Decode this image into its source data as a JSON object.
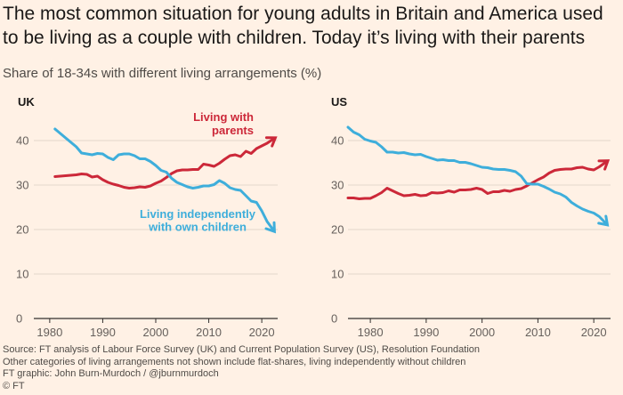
{
  "header": {
    "title": "The most common situation for young adults in Britain and America used to be living as a couple with children. Today it’s living with their parents",
    "subtitle": "Share of 18-34s with different living arrangements (%)"
  },
  "colors": {
    "background": "#fff1e5",
    "parents": "#cc2839",
    "independent": "#3eaedb",
    "grid": "#e3d6ca",
    "axis": "#33302e",
    "text": "#33302e"
  },
  "chart_data": [
    {
      "type": "line",
      "panel_label": "UK",
      "xlim": [
        1977,
        2023
      ],
      "ylim": [
        0,
        45
      ],
      "yticks": [
        0,
        10,
        20,
        30,
        40
      ],
      "ytick_labels": [
        "0",
        "10",
        "20",
        "30",
        "40"
      ],
      "xticks": [
        1980,
        1990,
        2000,
        2010,
        2020
      ],
      "xtick_labels": [
        "1980",
        "1990",
        "2000",
        "2010",
        "2020"
      ],
      "grid": true,
      "series": [
        {
          "name": "Living with parents",
          "label_lines": [
            "Living with",
            "parents"
          ],
          "color": "#cc2839",
          "x": [
            1981,
            1983,
            1985,
            1986,
            1987,
            1988,
            1989,
            1990,
            1991,
            1992,
            1993,
            1994,
            1995,
            1996,
            1997,
            1998,
            1999,
            2000,
            2001,
            2002,
            2003,
            2004,
            2005,
            2006,
            2007,
            2008,
            2009,
            2010,
            2011,
            2012,
            2013,
            2014,
            2015,
            2016,
            2017,
            2018,
            2019,
            2020,
            2021,
            2022
          ],
          "y": [
            31.9,
            32.1,
            32.3,
            32.5,
            32.4,
            31.8,
            32.0,
            31.2,
            30.6,
            30.2,
            29.9,
            29.5,
            29.3,
            29.4,
            29.6,
            29.5,
            29.8,
            30.4,
            30.9,
            31.7,
            32.6,
            33.2,
            33.4,
            33.4,
            33.5,
            33.5,
            34.7,
            34.5,
            34.2,
            34.9,
            35.8,
            36.6,
            36.8,
            36.4,
            37.6,
            37.1,
            38.2,
            38.8,
            39.4,
            40.2
          ]
        },
        {
          "name": "Living independently with own children",
          "label_lines": [
            "Living independently",
            "with own children"
          ],
          "color": "#3eaedb",
          "x": [
            1981,
            1983,
            1985,
            1986,
            1987,
            1988,
            1989,
            1990,
            1991,
            1992,
            1993,
            1994,
            1995,
            1996,
            1997,
            1998,
            1999,
            2000,
            2001,
            2002,
            2003,
            2004,
            2005,
            2006,
            2007,
            2008,
            2009,
            2010,
            2011,
            2012,
            2013,
            2014,
            2015,
            2016,
            2017,
            2018,
            2019,
            2020,
            2021,
            2022
          ],
          "y": [
            42.6,
            40.6,
            38.6,
            37.2,
            37.0,
            36.8,
            37.1,
            37.0,
            36.2,
            35.7,
            36.8,
            37.0,
            37.0,
            36.6,
            35.9,
            35.9,
            35.3,
            34.4,
            33.3,
            32.9,
            31.5,
            30.6,
            30.1,
            29.6,
            29.3,
            29.5,
            29.8,
            29.8,
            30.1,
            31.0,
            30.4,
            29.4,
            29.0,
            28.8,
            27.6,
            26.4,
            26.1,
            24.2,
            21.8,
            20.2
          ]
        }
      ]
    },
    {
      "type": "line",
      "panel_label": "US",
      "xlim": [
        1976,
        2023
      ],
      "ylim": [
        0,
        45
      ],
      "yticks": [
        0,
        10,
        20,
        30,
        40
      ],
      "ytick_labels": [
        "0",
        "10",
        "20",
        "30",
        "40"
      ],
      "xticks": [
        1980,
        1990,
        2000,
        2010,
        2020
      ],
      "xtick_labels": [
        "1980",
        "1990",
        "2000",
        "2010",
        "2020"
      ],
      "grid": true,
      "series": [
        {
          "name": "Living with parents",
          "color": "#cc2839",
          "x": [
            1976,
            1977,
            1978,
            1979,
            1980,
            1981,
            1982,
            1983,
            1984,
            1985,
            1986,
            1987,
            1988,
            1989,
            1990,
            1991,
            1992,
            1993,
            1994,
            1995,
            1996,
            1997,
            1998,
            1999,
            2000,
            2001,
            2002,
            2003,
            2004,
            2005,
            2006,
            2007,
            2008,
            2009,
            2010,
            2011,
            2012,
            2013,
            2014,
            2015,
            2016,
            2017,
            2018,
            2019,
            2020,
            2021,
            2022
          ],
          "y": [
            27.1,
            27.1,
            26.9,
            27.0,
            27.0,
            27.6,
            28.3,
            29.3,
            28.7,
            28.1,
            27.6,
            27.7,
            27.9,
            27.6,
            27.7,
            28.3,
            28.2,
            28.3,
            28.7,
            28.4,
            28.9,
            28.9,
            29.0,
            29.3,
            29.0,
            28.1,
            28.5,
            28.5,
            28.8,
            28.6,
            29.0,
            29.2,
            29.8,
            30.5,
            31.2,
            31.8,
            32.7,
            33.3,
            33.5,
            33.6,
            33.6,
            33.9,
            34.0,
            33.6,
            33.4,
            34.1,
            35.0
          ]
        },
        {
          "name": "Living independently with own children",
          "color": "#3eaedb",
          "x": [
            1976,
            1977,
            1978,
            1979,
            1980,
            1981,
            1982,
            1983,
            1984,
            1985,
            1986,
            1987,
            1988,
            1989,
            1990,
            1991,
            1992,
            1993,
            1994,
            1995,
            1996,
            1997,
            1998,
            1999,
            2000,
            2001,
            2002,
            2003,
            2004,
            2005,
            2006,
            2007,
            2008,
            2009,
            2010,
            2011,
            2012,
            2013,
            2014,
            2015,
            2016,
            2017,
            2018,
            2019,
            2020,
            2021,
            2022
          ],
          "y": [
            43.0,
            41.9,
            41.3,
            40.3,
            39.9,
            39.6,
            38.6,
            37.4,
            37.4,
            37.2,
            37.3,
            37.0,
            36.8,
            36.9,
            36.4,
            36.0,
            35.6,
            35.7,
            35.5,
            35.5,
            35.1,
            35.1,
            34.8,
            34.4,
            34.0,
            33.9,
            33.6,
            33.5,
            33.5,
            33.3,
            33.0,
            32.0,
            30.3,
            30.2,
            30.2,
            29.7,
            29.1,
            28.4,
            28.0,
            27.3,
            26.1,
            25.3,
            24.6,
            24.1,
            23.7,
            22.9,
            21.6
          ]
        }
      ]
    }
  ],
  "footer": {
    "source": "Source: FT analysis of Labour Force Survey (UK) and Current Population Survey (US), Resolution Foundation",
    "note": "Other categories of living arrangements not shown include flat-shares, living independently without children",
    "credit": "FT graphic: John Burn-Murdoch / @jburnmurdoch",
    "copyright": "© FT"
  }
}
